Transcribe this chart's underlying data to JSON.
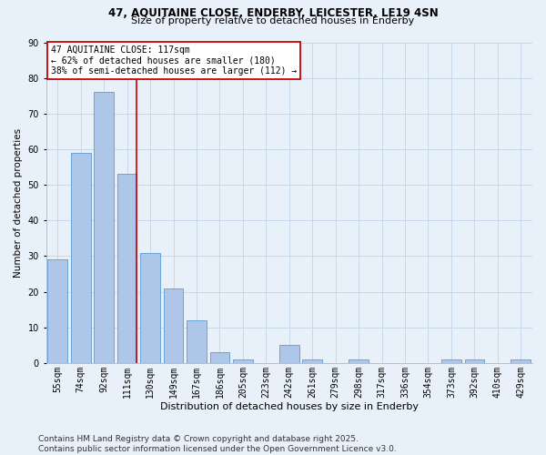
{
  "title_line1": "47, AQUITAINE CLOSE, ENDERBY, LEICESTER, LE19 4SN",
  "title_line2": "Size of property relative to detached houses in Enderby",
  "xlabel": "Distribution of detached houses by size in Enderby",
  "ylabel": "Number of detached properties",
  "categories": [
    "55sqm",
    "74sqm",
    "92sqm",
    "111sqm",
    "130sqm",
    "149sqm",
    "167sqm",
    "186sqm",
    "205sqm",
    "223sqm",
    "242sqm",
    "261sqm",
    "279sqm",
    "298sqm",
    "317sqm",
    "336sqm",
    "354sqm",
    "373sqm",
    "392sqm",
    "410sqm",
    "429sqm"
  ],
  "values": [
    29,
    59,
    76,
    53,
    31,
    21,
    12,
    3,
    1,
    0,
    5,
    1,
    0,
    1,
    0,
    0,
    0,
    1,
    1,
    0,
    1
  ],
  "bar_color": "#aec6e8",
  "bar_edge_color": "#5b9bd5",
  "annotation_text": "47 AQUITAINE CLOSE: 117sqm\n← 62% of detached houses are smaller (180)\n38% of semi-detached houses are larger (112) →",
  "annotation_box_color": "#ffffff",
  "annotation_box_edge_color": "#cc0000",
  "vline_color": "#cc0000",
  "vline_x_index": 3,
  "ylim": [
    0,
    90
  ],
  "yticks": [
    0,
    10,
    20,
    30,
    40,
    50,
    60,
    70,
    80,
    90
  ],
  "grid_color": "#c8d8ec",
  "background_color": "#e8f0fa",
  "footer_line1": "Contains HM Land Registry data © Crown copyright and database right 2025.",
  "footer_line2": "Contains public sector information licensed under the Open Government Licence v3.0.",
  "footer_fontsize": 6.5,
  "title1_fontsize": 8.5,
  "title2_fontsize": 8.0,
  "ylabel_fontsize": 7.5,
  "xlabel_fontsize": 8.0,
  "tick_fontsize": 7.0,
  "annot_fontsize": 7.0
}
